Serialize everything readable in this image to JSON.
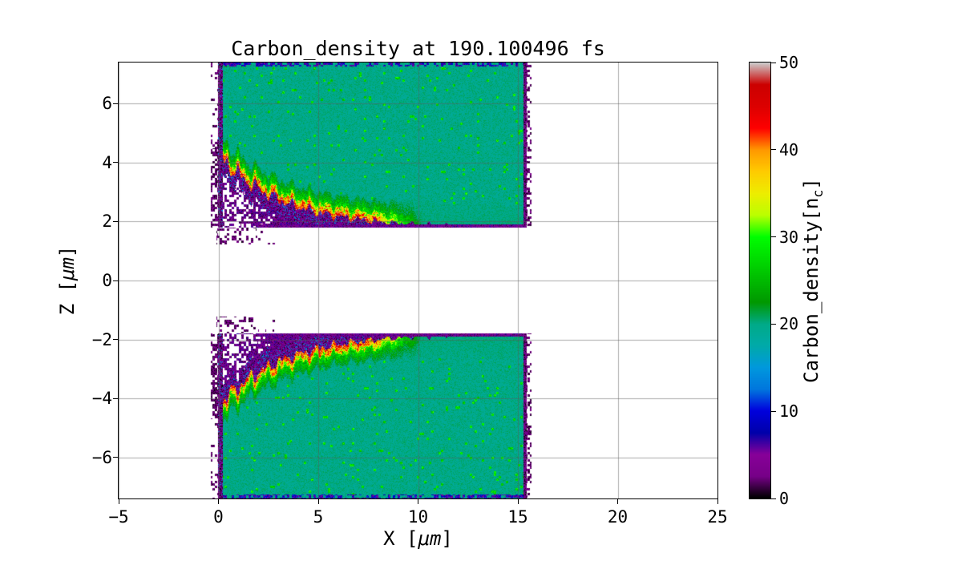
{
  "figure": {
    "background": "#ffffff"
  },
  "chart_data": {
    "type": "heatmap",
    "title": "Carbon_density at 190.100496 fs",
    "time_fs": 190.100496,
    "xlabel": {
      "pre": "X [",
      "math": "μm",
      "post": "]"
    },
    "ylabel": {
      "pre": "Z [",
      "math": "μm",
      "post": "]"
    },
    "x_range": [
      -5,
      25
    ],
    "z_range": [
      -7.4,
      7.4
    ],
    "x_ticks": [
      {
        "v": -5,
        "label": "−5"
      },
      {
        "v": 0,
        "label": "0"
      },
      {
        "v": 5,
        "label": "5"
      },
      {
        "v": 10,
        "label": "10"
      },
      {
        "v": 15,
        "label": "15"
      },
      {
        "v": 20,
        "label": "20"
      },
      {
        "v": 25,
        "label": "25"
      }
    ],
    "z_ticks": [
      {
        "v": -6,
        "label": "−6"
      },
      {
        "v": -4,
        "label": "−4"
      },
      {
        "v": -2,
        "label": "−2"
      },
      {
        "v": 0,
        "label": "0"
      },
      {
        "v": 2,
        "label": "2"
      },
      {
        "v": 4,
        "label": "4"
      },
      {
        "v": 6,
        "label": "6"
      }
    ],
    "grid": true,
    "grid_color": "rgba(90,90,90,0.5)",
    "colorbar": {
      "label_pre": "Carbon_density[n",
      "label_sub": "c",
      "label_post": "]",
      "range": [
        0,
        50
      ],
      "ticks": [
        {
          "v": 0,
          "label": "0"
        },
        {
          "v": 10,
          "label": "10"
        },
        {
          "v": 20,
          "label": "20"
        },
        {
          "v": 30,
          "label": "30"
        },
        {
          "v": 40,
          "label": "40"
        },
        {
          "v": 50,
          "label": "50"
        }
      ],
      "colormap": "nipy_spectral",
      "stops": [
        [
          0.0,
          "#000000"
        ],
        [
          0.05,
          "#770088"
        ],
        [
          0.1,
          "#880099"
        ],
        [
          0.15,
          "#0000aa"
        ],
        [
          0.2,
          "#0000dd"
        ],
        [
          0.25,
          "#0077dd"
        ],
        [
          0.3,
          "#0099dd"
        ],
        [
          0.35,
          "#00aaaa"
        ],
        [
          0.4,
          "#00aa88"
        ],
        [
          0.45,
          "#009900"
        ],
        [
          0.5,
          "#00bb00"
        ],
        [
          0.55,
          "#00dd00"
        ],
        [
          0.6,
          "#00ff00"
        ],
        [
          0.65,
          "#bbff00"
        ],
        [
          0.7,
          "#eeee00"
        ],
        [
          0.75,
          "#ffcc00"
        ],
        [
          0.8,
          "#ff9900"
        ],
        [
          0.85,
          "#ff0000"
        ],
        [
          0.9,
          "#dd0000"
        ],
        [
          0.95,
          "#cc0000"
        ],
        [
          1.0,
          "#cccccc"
        ]
      ]
    },
    "slabs": {
      "description": "Two carbon slabs mirrored about z=0. Interior density ~20 nc (teal) for x in [0,15.45], 1.8<|z|<7.4. Inner surfaces deformed by a jagged high-density front (30-50 nc, yellow/red) decaying from |z|~4.3 at x=0 to |z|~1.8 by x~10, with low-density ablated plasma (0-10 nc, black/purple/blue) between the front and |z|=1.8, scattered low-density blobs in the vacuum near x=0-3, and thin low-density layers along the outer edges x~0, x~15.45 and |z|~7.4.",
      "x_min": 0,
      "x_max": 15.45,
      "z_inner": 1.8,
      "z_outer": 7.4,
      "interior_density": 19,
      "front_amplitude": 2.45,
      "front_decay_length": 3.2,
      "front_x_fade": [
        7.5,
        10.2
      ],
      "front_peak_density": 50,
      "edge_strip_width": 0.22
    }
  }
}
